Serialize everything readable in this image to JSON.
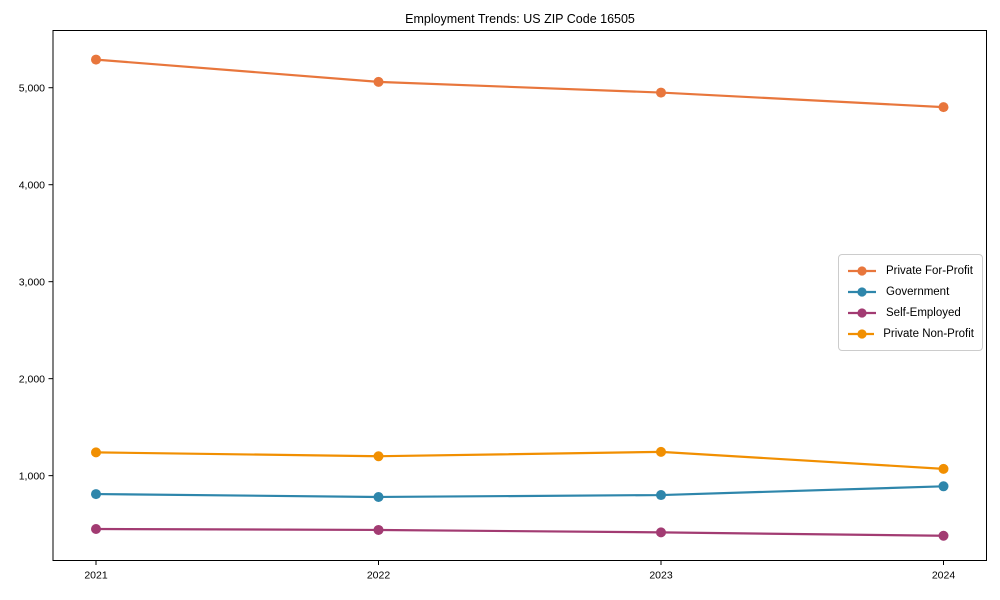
{
  "chart_data": {
    "type": "line",
    "title": "Employment Trends: US ZIP Code 16505",
    "xlabel": "",
    "ylabel": "",
    "x": [
      "2021",
      "2022",
      "2023",
      "2024"
    ],
    "series": [
      {
        "name": "Private For-Profit",
        "color": "#E8763C",
        "values": [
          5290,
          5060,
          4950,
          4800
        ]
      },
      {
        "name": "Government",
        "color": "#2E86AB",
        "values": [
          810,
          780,
          800,
          890
        ]
      },
      {
        "name": "Self-Employed",
        "color": "#A23B72",
        "values": [
          450,
          440,
          415,
          380
        ]
      },
      {
        "name": "Private Non-Profit",
        "color": "#F18F01",
        "values": [
          1240,
          1200,
          1245,
          1070
        ]
      }
    ],
    "yticks": {
      "values": [
        1000,
        2000,
        3000,
        4000,
        5000
      ],
      "labels": [
        "1,000",
        "2,000",
        "3,000",
        "4,000",
        "5,000"
      ]
    },
    "ylim": [
      125,
      5590
    ],
    "grid": false,
    "legend_position": "center-right",
    "marker": "circle",
    "line_width": 2.2,
    "marker_radius": 5,
    "axis_color": "#000000"
  }
}
